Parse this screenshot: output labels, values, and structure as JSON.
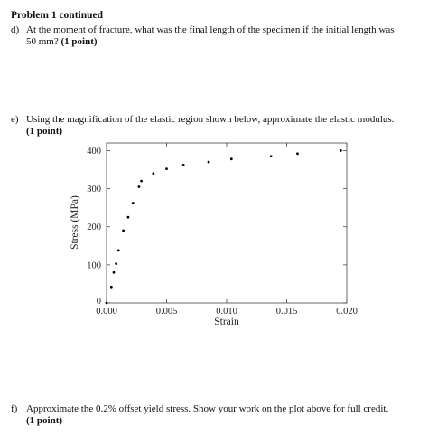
{
  "header": {
    "title": "Problem 1 continued"
  },
  "questions": [
    {
      "label": "d)",
      "line1": "At the moment of fracture, what was the final length of the specimen if the initial length was",
      "line2": "50 mm?",
      "points": "(1 point)"
    },
    {
      "label": "e)",
      "line1": "Using the magnification of the elastic region shown below, approximate the elastic modulus.",
      "points": "(1 point)"
    },
    {
      "label": "f)",
      "line1": "Approximate the 0.2% offset yield stress. Show your work on the plot above for full credit.",
      "points": "(1 point)"
    }
  ],
  "chart_data": {
    "type": "scatter",
    "xlabel": "Strain",
    "ylabel": "Stress (MPa)",
    "xlim": [
      0,
      0.02
    ],
    "ylim": [
      0,
      420
    ],
    "xticks": [
      0.0,
      0.005,
      0.01,
      0.015,
      0.02
    ],
    "xtick_labels": [
      "0.000",
      "0.005",
      "0.010",
      "0.015",
      "0.020"
    ],
    "yticks": [
      0,
      100,
      200,
      300,
      400
    ],
    "ytick_labels": [
      "0",
      "100",
      "200",
      "300",
      "400"
    ],
    "grid": false,
    "series": [
      {
        "points": [
          [
            0.0,
            0
          ],
          [
            0.0004,
            42
          ],
          [
            0.0006,
            80
          ],
          [
            0.0008,
            103
          ],
          [
            0.001,
            138
          ],
          [
            0.0014,
            190
          ],
          [
            0.0018,
            225
          ],
          [
            0.0022,
            262
          ],
          [
            0.0027,
            305
          ],
          [
            0.0029,
            320
          ],
          [
            0.0039,
            340
          ],
          [
            0.005,
            352
          ],
          [
            0.0064,
            362
          ],
          [
            0.0085,
            370
          ],
          [
            0.0104,
            378
          ],
          [
            0.0137,
            385
          ],
          [
            0.0159,
            392
          ],
          [
            0.0195,
            400
          ]
        ]
      }
    ]
  }
}
